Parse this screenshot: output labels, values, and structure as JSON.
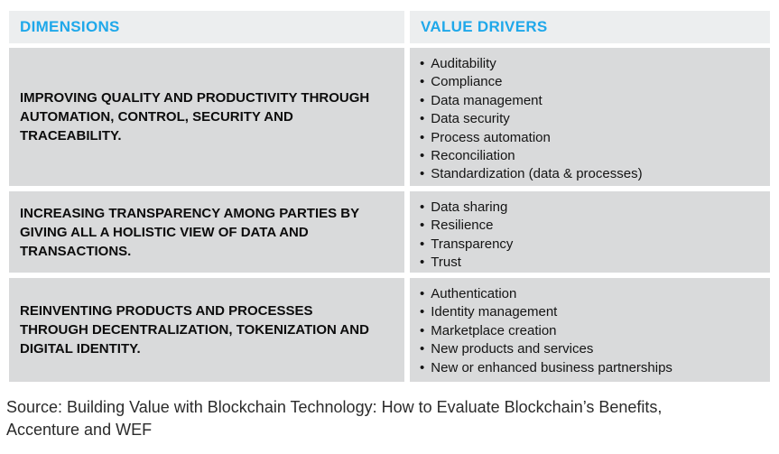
{
  "table": {
    "headers": [
      {
        "label": "DIMENSIONS"
      },
      {
        "label": "VALUE DRIVERS"
      }
    ],
    "rows": [
      {
        "dimension": "IMPROVING QUALITY AND PRODUCTIVITY THROUGH AUTOMATION, CONTROL, SECURITY AND TRACEABILITY.",
        "value_drivers": [
          "Auditability",
          "Compliance",
          "Data management",
          "Data security",
          "Process automation",
          "Reconciliation",
          "Standardization (data & processes)"
        ]
      },
      {
        "dimension": "INCREASING TRANSPARENCY AMONG PARTIES BY GIVING ALL A HOLISTIC VIEW OF DATA AND TRANSACTIONS.",
        "value_drivers": [
          "Data sharing",
          "Resilience",
          "Transparency",
          "Trust"
        ]
      },
      {
        "dimension": "REINVENTING PRODUCTS AND PROCESSES THROUGH DECENTRALIZATION, TOKENIZATION AND DIGITAL IDENTITY.",
        "value_drivers": [
          "Authentication",
          "Identity management",
          "Marketplace creation",
          "New products and services",
          "New or enhanced business partnerships"
        ]
      }
    ]
  },
  "source": "Source: Building Value with Blockchain Technology: How to Evaluate Blockchain’s Benefits, Accenture and WEF",
  "colors": {
    "header_text": "#1fa8ea",
    "header_bg": "#eceeef",
    "row_bg": "#d9dadb",
    "body_text": "#141414"
  }
}
